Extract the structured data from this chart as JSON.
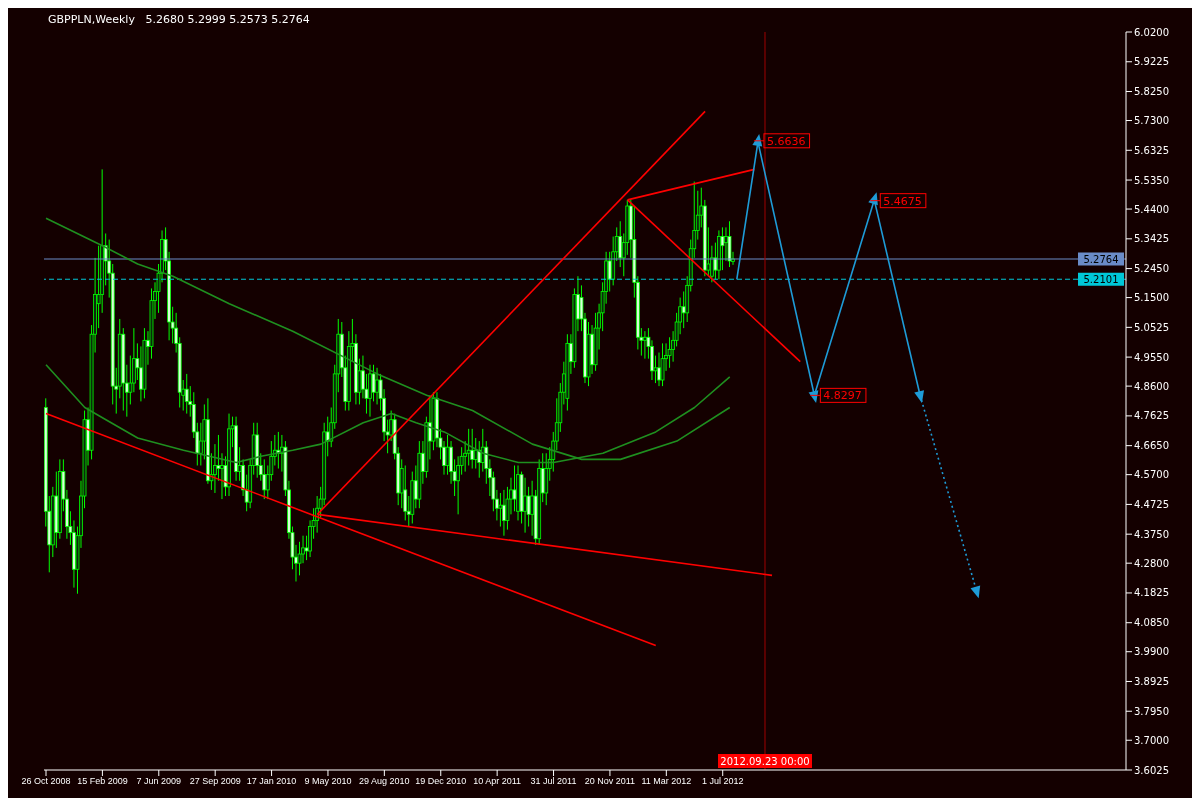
{
  "chart_data": {
    "type": "candlestick",
    "title": "GBPPLN,Weekly",
    "subtitle": "5.2680 5.2999 5.2573 5.2764",
    "color": "#00ff00",
    "x": [
      "2008-10-26",
      "2008-11-02",
      "2008-11-09",
      "2008-11-16",
      "2008-11-23",
      "2008-11-30",
      "2008-12-07",
      "2008-12-14",
      "2008-12-21",
      "2008-12-28",
      "2009-01-04",
      "2009-01-11",
      "2009-01-18",
      "2009-01-25",
      "2009-02-01",
      "2009-02-08",
      "2009-02-15",
      "2009-02-22",
      "2009-03-01",
      "2009-03-08",
      "2009-03-15",
      "2009-03-22",
      "2009-03-29",
      "2009-04-05",
      "2009-04-12",
      "2009-04-19",
      "2009-04-26",
      "2009-05-03",
      "2009-05-10",
      "2009-05-17",
      "2009-05-24",
      "2009-05-31",
      "2009-06-07",
      "2009-06-14",
      "2009-06-21",
      "2009-06-28",
      "2009-07-05",
      "2009-07-12",
      "2009-07-19",
      "2009-07-26",
      "2009-08-02",
      "2009-08-09",
      "2009-08-16",
      "2009-08-23",
      "2009-08-30",
      "2009-09-06",
      "2009-09-13",
      "2009-09-20",
      "2009-09-27",
      "2009-10-04",
      "2009-10-11",
      "2009-10-18",
      "2009-10-25",
      "2009-11-01",
      "2009-11-08",
      "2009-11-15",
      "2009-11-22",
      "2009-11-29",
      "2009-12-06",
      "2009-12-13",
      "2009-12-20",
      "2009-12-27",
      "2010-01-03",
      "2010-01-10",
      "2010-01-17",
      "2010-01-24",
      "2010-01-31",
      "2010-02-07",
      "2010-02-14",
      "2010-02-21",
      "2010-02-28",
      "2010-03-07",
      "2010-03-14",
      "2010-03-21",
      "2010-03-28",
      "2010-04-04",
      "2010-04-11",
      "2010-04-18",
      "2010-04-25",
      "2010-05-02",
      "2010-05-09",
      "2010-05-16",
      "2010-05-23",
      "2010-05-30",
      "2010-06-06",
      "2010-06-13",
      "2010-06-20",
      "2010-06-27",
      "2010-07-04",
      "2010-07-11",
      "2010-07-18",
      "2010-07-25",
      "2010-08-01",
      "2010-08-08",
      "2010-08-15",
      "2010-08-22",
      "2010-08-29",
      "2010-09-05",
      "2010-09-12",
      "2010-09-19",
      "2010-09-26",
      "2010-10-03",
      "2010-10-10",
      "2010-10-17",
      "2010-10-24",
      "2010-10-31",
      "2010-11-07",
      "2010-11-14",
      "2010-11-21",
      "2010-11-28",
      "2010-12-05",
      "2010-12-12",
      "2010-12-19",
      "2010-12-26",
      "2011-01-02",
      "2011-01-09",
      "2011-01-16",
      "2011-01-23",
      "2011-01-30",
      "2011-02-06",
      "2011-02-13",
      "2011-02-20",
      "2011-02-27",
      "2011-03-06",
      "2011-03-13",
      "2011-03-20",
      "2011-03-27",
      "2011-04-03",
      "2011-04-10",
      "2011-04-17",
      "2011-04-24",
      "2011-05-01",
      "2011-05-08",
      "2011-05-15",
      "2011-05-22",
      "2011-05-29",
      "2011-06-05",
      "2011-06-12",
      "2011-06-19",
      "2011-06-26",
      "2011-07-03",
      "2011-07-10",
      "2011-07-17",
      "2011-07-24",
      "2011-07-31",
      "2011-08-07",
      "2011-08-14",
      "2011-08-21",
      "2011-08-28",
      "2011-09-04",
      "2011-09-11",
      "2011-09-18",
      "2011-09-25",
      "2011-10-02",
      "2011-10-09",
      "2011-10-16",
      "2011-10-23",
      "2011-10-30",
      "2011-11-06",
      "2011-11-13",
      "2011-11-20",
      "2011-11-27",
      "2011-12-04",
      "2011-12-11",
      "2011-12-18",
      "2011-12-25",
      "2012-01-01",
      "2012-01-08",
      "2012-01-15",
      "2012-01-22",
      "2012-01-29",
      "2012-02-05",
      "2012-02-12",
      "2012-02-19",
      "2012-02-26",
      "2012-03-04",
      "2012-03-11",
      "2012-03-18",
      "2012-03-25",
      "2012-04-01",
      "2012-04-08",
      "2012-04-15",
      "2012-04-22",
      "2012-04-29",
      "2012-05-06",
      "2012-05-13",
      "2012-05-20",
      "2012-05-27",
      "2012-06-03",
      "2012-06-10",
      "2012-06-17",
      "2012-06-24",
      "2012-07-01",
      "2012-07-08",
      "2012-07-15",
      "2012-07-22"
    ],
    "ohlc": [
      [
        4.79,
        4.82,
        4.4,
        4.45
      ],
      [
        4.45,
        4.5,
        4.25,
        4.34
      ],
      [
        4.34,
        4.53,
        4.3,
        4.5
      ],
      [
        4.5,
        4.58,
        4.33,
        4.38
      ],
      [
        4.38,
        4.62,
        4.36,
        4.58
      ],
      [
        4.58,
        4.62,
        4.45,
        4.49
      ],
      [
        4.49,
        4.52,
        4.36,
        4.4
      ],
      [
        4.4,
        4.45,
        4.34,
        4.38
      ],
      [
        4.38,
        4.42,
        4.2,
        4.26
      ],
      [
        4.26,
        4.4,
        4.18,
        4.37
      ],
      [
        4.37,
        4.55,
        4.33,
        4.5
      ],
      [
        4.5,
        4.78,
        4.46,
        4.75
      ],
      [
        4.75,
        4.79,
        4.6,
        4.65
      ],
      [
        4.65,
        5.06,
        4.62,
        5.03
      ],
      [
        5.03,
        5.28,
        4.97,
        5.16
      ],
      [
        5.13,
        5.32,
        5.05,
        5.16
      ],
      [
        5.16,
        5.57,
        5.1,
        5.32
      ],
      [
        5.32,
        5.36,
        5.19,
        5.27
      ],
      [
        5.27,
        5.34,
        5.15,
        5.23
      ],
      [
        5.23,
        5.26,
        4.8,
        4.86
      ],
      [
        4.86,
        4.92,
        4.77,
        4.85
      ],
      [
        4.86,
        5.08,
        4.82,
        5.03
      ],
      [
        5.03,
        5.05,
        4.78,
        4.87
      ],
      [
        4.87,
        4.93,
        4.76,
        4.84
      ],
      [
        4.84,
        4.96,
        4.8,
        4.87
      ],
      [
        4.87,
        5.05,
        4.84,
        4.95
      ],
      [
        4.95,
        5.0,
        4.88,
        4.92
      ],
      [
        4.92,
        4.99,
        4.81,
        4.85
      ],
      [
        4.85,
        5.05,
        4.82,
        5.01
      ],
      [
        5.01,
        5.04,
        4.93,
        4.99
      ],
      [
        4.99,
        5.18,
        4.95,
        5.14
      ],
      [
        5.14,
        5.2,
        5.08,
        5.17
      ],
      [
        5.17,
        5.26,
        5.1,
        5.23
      ],
      [
        5.23,
        5.37,
        5.2,
        5.34
      ],
      [
        5.34,
        5.38,
        5.24,
        5.27
      ],
      [
        5.27,
        5.3,
        5.01,
        5.07
      ],
      [
        5.07,
        5.12,
        5.0,
        5.05
      ],
      [
        5.05,
        5.1,
        4.97,
        5.0
      ],
      [
        5.0,
        5.02,
        4.79,
        4.84
      ],
      [
        4.83,
        4.88,
        4.78,
        4.85
      ],
      [
        4.85,
        4.9,
        4.77,
        4.81
      ],
      [
        4.81,
        4.86,
        4.76,
        4.8
      ],
      [
        4.8,
        4.84,
        4.69,
        4.71
      ],
      [
        4.71,
        4.74,
        4.6,
        4.64
      ],
      [
        4.64,
        4.74,
        4.6,
        4.68
      ],
      [
        4.68,
        4.8,
        4.62,
        4.75
      ],
      [
        4.75,
        4.82,
        4.54,
        4.55
      ],
      [
        4.55,
        4.64,
        4.52,
        4.57
      ],
      [
        4.57,
        4.67,
        4.51,
        4.6
      ],
      [
        4.6,
        4.7,
        4.55,
        4.59
      ],
      [
        4.59,
        4.64,
        4.49,
        4.6
      ],
      [
        4.6,
        4.63,
        4.5,
        4.53
      ],
      [
        4.53,
        4.77,
        4.5,
        4.72
      ],
      [
        4.72,
        4.76,
        4.66,
        4.73
      ],
      [
        4.73,
        4.76,
        4.55,
        4.58
      ],
      [
        4.58,
        4.66,
        4.55,
        4.6
      ],
      [
        4.6,
        4.62,
        4.5,
        4.52
      ],
      [
        4.52,
        4.57,
        4.45,
        4.48
      ],
      [
        4.48,
        4.62,
        4.46,
        4.6
      ],
      [
        4.6,
        4.74,
        4.57,
        4.7
      ],
      [
        4.7,
        4.74,
        4.56,
        4.6
      ],
      [
        4.6,
        4.64,
        4.55,
        4.57
      ],
      [
        4.57,
        4.62,
        4.49,
        4.52
      ],
      [
        4.52,
        4.6,
        4.49,
        4.57
      ],
      [
        4.57,
        4.68,
        4.55,
        4.63
      ],
      [
        4.63,
        4.7,
        4.6,
        4.65
      ],
      [
        4.65,
        4.71,
        4.59,
        4.64
      ],
      [
        4.64,
        4.7,
        4.58,
        4.66
      ],
      [
        4.66,
        4.68,
        4.5,
        4.52
      ],
      [
        4.52,
        4.55,
        4.36,
        4.38
      ],
      [
        4.38,
        4.4,
        4.26,
        4.3
      ],
      [
        4.3,
        4.34,
        4.22,
        4.28
      ],
      [
        4.28,
        4.35,
        4.24,
        4.31
      ],
      [
        4.31,
        4.37,
        4.28,
        4.33
      ],
      [
        4.33,
        4.37,
        4.29,
        4.32
      ],
      [
        4.32,
        4.42,
        4.3,
        4.4
      ],
      [
        4.4,
        4.46,
        4.36,
        4.42
      ],
      [
        4.42,
        4.5,
        4.38,
        4.46
      ],
      [
        4.46,
        4.53,
        4.43,
        4.49
      ],
      [
        4.49,
        4.74,
        4.47,
        4.71
      ],
      [
        4.71,
        4.76,
        4.63,
        4.68
      ],
      [
        4.68,
        4.79,
        4.66,
        4.74
      ],
      [
        4.74,
        4.93,
        4.72,
        4.9
      ],
      [
        4.9,
        5.08,
        4.84,
        5.03
      ],
      [
        5.03,
        5.07,
        4.89,
        4.92
      ],
      [
        4.92,
        4.96,
        4.78,
        4.81
      ],
      [
        4.81,
        5.04,
        4.78,
        4.99
      ],
      [
        4.99,
        5.08,
        4.94,
        5.0
      ],
      [
        5.0,
        5.03,
        4.8,
        4.84
      ],
      [
        4.84,
        4.95,
        4.8,
        4.91
      ],
      [
        4.91,
        4.96,
        4.82,
        4.85
      ],
      [
        4.85,
        4.9,
        4.77,
        4.82
      ],
      [
        4.82,
        4.93,
        4.76,
        4.9
      ],
      [
        4.9,
        4.93,
        4.81,
        4.84
      ],
      [
        4.84,
        4.92,
        4.8,
        4.88
      ],
      [
        4.88,
        4.9,
        4.78,
        4.82
      ],
      [
        4.82,
        4.85,
        4.68,
        4.71
      ],
      [
        4.71,
        4.75,
        4.64,
        4.7
      ],
      [
        4.7,
        4.78,
        4.68,
        4.75
      ],
      [
        4.75,
        4.77,
        4.62,
        4.64
      ],
      [
        4.64,
        4.66,
        4.47,
        4.51
      ],
      [
        4.51,
        4.62,
        4.46,
        4.59
      ],
      [
        4.52,
        4.6,
        4.42,
        4.45
      ],
      [
        4.45,
        4.5,
        4.4,
        4.44
      ],
      [
        4.44,
        4.58,
        4.41,
        4.55
      ],
      [
        4.55,
        4.6,
        4.46,
        4.49
      ],
      [
        4.49,
        4.68,
        4.46,
        4.64
      ],
      [
        4.64,
        4.68,
        4.54,
        4.58
      ],
      [
        4.58,
        4.76,
        4.56,
        4.74
      ],
      [
        4.74,
        4.83,
        4.62,
        4.68
      ],
      [
        4.68,
        4.84,
        4.65,
        4.82
      ],
      [
        4.82,
        4.84,
        4.66,
        4.69
      ],
      [
        4.69,
        4.72,
        4.62,
        4.66
      ],
      [
        4.66,
        4.68,
        4.57,
        4.6
      ],
      [
        4.6,
        4.7,
        4.57,
        4.66
      ],
      [
        4.66,
        4.68,
        4.54,
        4.58
      ],
      [
        4.58,
        4.62,
        4.5,
        4.55
      ],
      [
        4.55,
        4.63,
        4.44,
        4.6
      ],
      [
        4.6,
        4.66,
        4.57,
        4.63
      ],
      [
        4.63,
        4.68,
        4.58,
        4.64
      ],
      [
        4.64,
        4.72,
        4.6,
        4.65
      ],
      [
        4.65,
        4.72,
        4.59,
        4.62
      ],
      [
        4.62,
        4.69,
        4.59,
        4.65
      ],
      [
        4.65,
        4.68,
        4.56,
        4.61
      ],
      [
        4.61,
        4.72,
        4.58,
        4.66
      ],
      [
        4.66,
        4.68,
        4.54,
        4.59
      ],
      [
        4.59,
        4.62,
        4.5,
        4.56
      ],
      [
        4.56,
        4.58,
        4.45,
        4.49
      ],
      [
        4.49,
        4.52,
        4.42,
        4.46
      ],
      [
        4.46,
        4.51,
        4.4,
        4.47
      ],
      [
        4.47,
        4.52,
        4.37,
        4.42
      ],
      [
        4.42,
        4.53,
        4.39,
        4.49
      ],
      [
        4.49,
        4.56,
        4.44,
        4.52
      ],
      [
        4.52,
        4.6,
        4.45,
        4.49
      ],
      [
        4.45,
        4.6,
        4.42,
        4.57
      ],
      [
        4.57,
        4.58,
        4.41,
        4.45
      ],
      [
        4.45,
        4.56,
        4.38,
        4.5
      ],
      [
        4.5,
        4.53,
        4.4,
        4.44
      ],
      [
        4.44,
        4.55,
        4.37,
        4.5
      ],
      [
        4.5,
        4.52,
        4.34,
        4.36
      ],
      [
        4.36,
        4.62,
        4.34,
        4.59
      ],
      [
        4.59,
        4.64,
        4.48,
        4.51
      ],
      [
        4.51,
        4.64,
        4.47,
        4.59
      ],
      [
        4.59,
        4.66,
        4.55,
        4.62
      ],
      [
        4.62,
        4.71,
        4.58,
        4.68
      ],
      [
        4.68,
        4.82,
        4.65,
        4.74
      ],
      [
        4.74,
        4.87,
        4.71,
        4.84
      ],
      [
        4.84,
        4.94,
        4.8,
        4.9
      ],
      [
        4.82,
        5.03,
        4.78,
        5.0
      ],
      [
        5.0,
        5.03,
        4.9,
        4.94
      ],
      [
        4.94,
        5.18,
        4.92,
        5.16
      ],
      [
        5.16,
        5.22,
        5.04,
        5.08
      ],
      [
        5.15,
        5.19,
        5.04,
        5.08
      ],
      [
        5.08,
        5.1,
        4.87,
        4.89
      ],
      [
        4.89,
        5.07,
        4.86,
        5.03
      ],
      [
        5.03,
        5.06,
        4.9,
        4.93
      ],
      [
        4.93,
        5.1,
        4.91,
        5.05
      ],
      [
        5.05,
        5.13,
        4.98,
        5.1
      ],
      [
        5.1,
        5.2,
        5.04,
        5.17
      ],
      [
        5.17,
        5.3,
        5.13,
        5.27
      ],
      [
        5.27,
        5.3,
        5.17,
        5.21
      ],
      [
        5.21,
        5.35,
        5.19,
        5.3
      ],
      [
        5.3,
        5.38,
        5.27,
        5.35
      ],
      [
        5.35,
        5.4,
        5.25,
        5.28
      ],
      [
        5.28,
        5.36,
        5.22,
        5.33
      ],
      [
        5.33,
        5.47,
        5.29,
        5.45
      ],
      [
        5.45,
        5.47,
        5.28,
        5.34
      ],
      [
        5.34,
        5.45,
        5.15,
        5.2
      ],
      [
        5.2,
        5.22,
        4.98,
        5.02
      ],
      [
        5.02,
        5.05,
        4.96,
        5.01
      ],
      [
        5.01,
        5.04,
        4.95,
        5.02
      ],
      [
        5.02,
        5.05,
        4.95,
        4.99
      ],
      [
        4.99,
        5.01,
        4.88,
        4.91
      ],
      [
        4.91,
        4.96,
        4.87,
        4.92
      ],
      [
        4.92,
        4.97,
        4.86,
        4.88
      ],
      [
        4.88,
        5.0,
        4.86,
        4.95
      ],
      [
        4.95,
        5.0,
        4.91,
        4.96
      ],
      [
        4.96,
        5.02,
        4.92,
        4.98
      ],
      [
        4.98,
        5.04,
        4.94,
        5.01
      ],
      [
        5.01,
        5.1,
        4.99,
        5.07
      ],
      [
        5.07,
        5.15,
        5.03,
        5.12
      ],
      [
        5.12,
        5.17,
        5.05,
        5.1
      ],
      [
        5.1,
        5.22,
        5.07,
        5.19
      ],
      [
        5.19,
        5.34,
        5.17,
        5.31
      ],
      [
        5.31,
        5.53,
        5.28,
        5.37
      ],
      [
        5.37,
        5.5,
        5.34,
        5.42
      ],
      [
        5.42,
        5.51,
        5.38,
        5.45
      ],
      [
        5.45,
        5.47,
        5.22,
        5.24
      ],
      [
        5.24,
        5.38,
        5.22,
        5.26
      ],
      [
        5.22,
        5.32,
        5.2,
        5.28
      ],
      [
        5.28,
        5.33,
        5.21,
        5.24
      ],
      [
        5.24,
        5.37,
        5.21,
        5.35
      ],
      [
        5.35,
        5.38,
        5.24,
        5.32
      ],
      [
        5.33,
        5.38,
        5.27,
        5.35
      ],
      [
        5.35,
        5.4,
        5.25,
        5.27
      ],
      [
        5.268,
        5.2999,
        5.2573,
        5.2764
      ]
    ],
    "series": [
      {
        "type": "line",
        "color": "#1f8f1f",
        "x": [
          "2008-10-26",
          "2009-02-15",
          "2009-04-26",
          "2009-07-05",
          "2009-10-25",
          "2010-02-28",
          "2010-08-15",
          "2010-11-21",
          "2011-02-20",
          "2011-06-19",
          "2011-09-25",
          "2011-12-11",
          "2012-04-01",
          "2012-07-15"
        ],
        "values": [
          5.41,
          5.32,
          5.26,
          5.22,
          5.13,
          5.04,
          4.9,
          4.83,
          4.78,
          4.67,
          4.62,
          4.62,
          4.68,
          4.79
        ]
      },
      {
        "type": "line",
        "color": "#1f8f1f",
        "x": [
          "2008-10-26",
          "2009-01-11",
          "2009-02-22",
          "2009-04-26",
          "2009-07-26",
          "2009-11-08",
          "2009-12-27",
          "2010-02-28",
          "2010-04-25",
          "2010-07-18",
          "2010-09-12",
          "2010-10-31",
          "2010-12-26",
          "2011-03-13",
          "2011-05-22",
          "2011-07-31",
          "2011-11-06",
          "2012-02-19",
          "2012-05-06",
          "2012-07-15"
        ],
        "values": [
          4.93,
          4.79,
          4.75,
          4.69,
          4.65,
          4.61,
          4.63,
          4.65,
          4.67,
          4.74,
          4.77,
          4.74,
          4.71,
          4.64,
          4.61,
          4.61,
          4.64,
          4.71,
          4.79,
          4.89
        ]
      },
      {
        "type": "line",
        "color": "#ff0000",
        "x": [
          "2008-10-26",
          "2012-02-19"
        ],
        "values": [
          4.77,
          4.01
        ]
      },
      {
        "type": "line",
        "color": "#ff0000",
        "x": [
          "2010-04-18",
          "2012-10-07"
        ],
        "values": [
          4.44,
          4.24
        ]
      },
      {
        "type": "line",
        "color": "#ff0000",
        "x": [
          "2010-04-18",
          "2012-05-27"
        ],
        "values": [
          4.44,
          5.76
        ]
      },
      {
        "type": "line",
        "color": "#ff0000",
        "x": [
          "2011-12-25",
          "2012-09-02"
        ],
        "values": [
          5.47,
          5.57
        ]
      },
      {
        "type": "line",
        "color": "#ff0000",
        "x": [
          "2011-12-25",
          "2012-12-02"
        ],
        "values": [
          5.47,
          4.94
        ]
      },
      {
        "type": "line",
        "color": "#1e9bd7",
        "marker": "triangle",
        "x": [
          "2012-07-29",
          "2012-09-09",
          "2012-12-30",
          "2013-04-28",
          "2013-07-28"
        ],
        "values": [
          5.21,
          5.66,
          4.83,
          5.47,
          4.83
        ]
      },
      {
        "type": "line",
        "color": "#1e9bd7",
        "marker": "triangle",
        "line_style": "dotted",
        "x": [
          "2013-07-28",
          "2013-11-17"
        ],
        "values": [
          4.83,
          4.19
        ]
      }
    ],
    "ref_lines": [
      {
        "axis": "y",
        "value": 5.2764,
        "label": "5.2764",
        "color": "#6a8cc8"
      },
      {
        "axis": "y",
        "value": 5.2101,
        "label": "5.2101",
        "color": "#00c8d8",
        "line_style": "dashed"
      },
      {
        "axis": "x",
        "value": "2012-09-23",
        "label": "2012.09.23 00:00",
        "color": "#a00000"
      }
    ],
    "annotations": [
      {
        "text": "5.6636",
        "x": "2012-09-09",
        "y": 5.6636
      },
      {
        "text": "4.8297",
        "x": "2012-12-30",
        "y": 4.8297
      },
      {
        "text": "5.4675",
        "x": "2013-04-28",
        "y": 5.4675
      }
    ],
    "xlim": [
      "2008-10-22",
      "2014-09-10"
    ],
    "xticks": [
      {
        "value": "2008-10-26",
        "label": "26 Oct 2008"
      },
      {
        "value": "2009-02-15",
        "label": "15 Feb 2009"
      },
      {
        "value": "2009-06-07",
        "label": "7 Jun 2009"
      },
      {
        "value": "2009-09-27",
        "label": "27 Sep 2009"
      },
      {
        "value": "2010-01-17",
        "label": "17 Jan 2010"
      },
      {
        "value": "2010-05-09",
        "label": "9 May 2010"
      },
      {
        "value": "2010-08-29",
        "label": "29 Aug 2010"
      },
      {
        "value": "2010-12-19",
        "label": "19 Dec 2010"
      },
      {
        "value": "2011-04-10",
        "label": "10 Apr 2011"
      },
      {
        "value": "2011-07-31",
        "label": "31 Jul 2011"
      },
      {
        "value": "2011-11-20",
        "label": "20 Nov 2011"
      },
      {
        "value": "2012-03-11",
        "label": "11 Mar 2012"
      },
      {
        "value": "2012-07-01",
        "label": "1 Jul 2012"
      }
    ],
    "ylim": [
      3.6025,
      6.02
    ],
    "yticks": [
      {
        "value": 6.02,
        "label": "6.0200"
      },
      {
        "value": 5.9225,
        "label": "5.9225"
      },
      {
        "value": 5.825,
        "label": "5.8250"
      },
      {
        "value": 5.73,
        "label": "5.7300"
      },
      {
        "value": 5.6325,
        "label": "5.6325"
      },
      {
        "value": 5.535,
        "label": "5.5350"
      },
      {
        "value": 5.44,
        "label": "5.4400"
      },
      {
        "value": 5.3425,
        "label": "5.3425"
      },
      {
        "value": 5.245,
        "label": "5.2450"
      },
      {
        "value": 5.15,
        "label": "5.1500"
      },
      {
        "value": 5.0525,
        "label": "5.0525"
      },
      {
        "value": 4.955,
        "label": "4.9550"
      },
      {
        "value": 4.86,
        "label": "4.8600"
      },
      {
        "value": 4.7625,
        "label": "4.7625"
      },
      {
        "value": 4.665,
        "label": "4.6650"
      },
      {
        "value": 4.57,
        "label": "4.5700"
      },
      {
        "value": 4.4725,
        "label": "4.4725"
      },
      {
        "value": 4.375,
        "label": "4.3750"
      },
      {
        "value": 4.28,
        "label": "4.2800"
      },
      {
        "value": 4.1825,
        "label": "4.1825"
      },
      {
        "value": 4.085,
        "label": "4.0850"
      },
      {
        "value": 3.99,
        "label": "3.9900"
      },
      {
        "value": 3.8925,
        "label": "3.8925"
      },
      {
        "value": 3.795,
        "label": "3.7950"
      },
      {
        "value": 3.7,
        "label": "3.7000"
      },
      {
        "value": 3.6025,
        "label": "3.6025"
      }
    ]
  }
}
